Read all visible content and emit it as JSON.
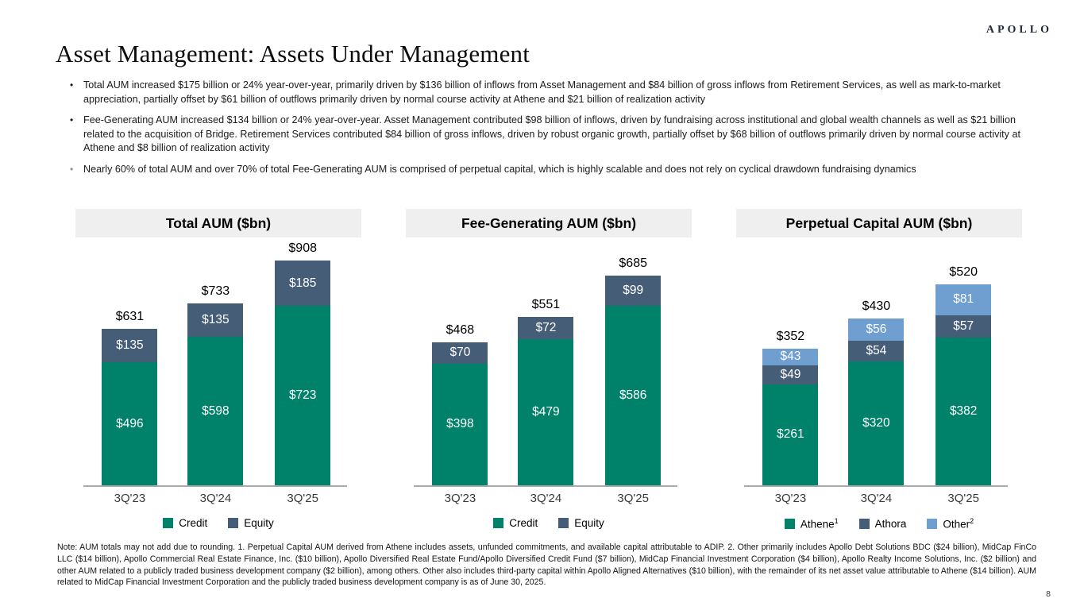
{
  "logo": "APOLLO",
  "title": "Asset Management: Assets Under Management",
  "bullets": [
    "Total AUM increased $175 billion or 24% year-over-year, primarily driven by $136 billion of inflows from Asset Management and $84 billion of gross inflows from Retirement Services, as well as mark-to-market appreciation, partially offset by $61 billion of outflows primarily driven by normal course activity at Athene and $21 billion of realization activity",
    "Fee-Generating AUM increased $134 billion or 24% year-over-year. Asset Management contributed $98 billion of inflows, driven by fundraising across institutional and global wealth channels as well as $21 billion related to the acquisition of Bridge. Retirement Services contributed $84 billion of gross inflows, driven by robust organic growth, partially offset by $68 billion of outflows primarily driven by normal course activity at Athene and $8 billion of realization activity",
    "Nearly 60% of total AUM and over 70% of total Fee-Generating AUM is comprised of perpetual capital, which is highly scalable and does not rely on cyclical drawdown fundraising dynamics"
  ],
  "chart_data": [
    {
      "type": "bar",
      "stacked": true,
      "title": "Total AUM ($bn)",
      "categories": [
        "3Q'23",
        "3Q'24",
        "3Q'25"
      ],
      "series": [
        {
          "name": "Credit",
          "sup": "",
          "color": "#00826A",
          "values": [
            496,
            598,
            723
          ]
        },
        {
          "name": "Equity",
          "sup": "",
          "color": "#465D77",
          "values": [
            135,
            135,
            185
          ]
        }
      ],
      "totals": [
        631,
        733,
        908
      ],
      "ylim": [
        0,
        1000
      ],
      "legend_position": "bottom",
      "grid": false
    },
    {
      "type": "bar",
      "stacked": true,
      "title": "Fee-Generating AUM ($bn)",
      "categories": [
        "3Q'23",
        "3Q'24",
        "3Q'25"
      ],
      "series": [
        {
          "name": "Credit",
          "sup": "",
          "color": "#00826A",
          "values": [
            398,
            479,
            586
          ]
        },
        {
          "name": "Equity",
          "sup": "",
          "color": "#465D77",
          "values": [
            70,
            72,
            99
          ]
        }
      ],
      "totals": [
        468,
        551,
        685
      ],
      "ylim": [
        0,
        810
      ],
      "legend_position": "bottom",
      "grid": false
    },
    {
      "type": "bar",
      "stacked": true,
      "title": "Perpetual Capital AUM ($bn)",
      "categories": [
        "3Q'23",
        "3Q'24",
        "3Q'25"
      ],
      "series": [
        {
          "name": "Athene",
          "sup": "1",
          "color": "#00826A",
          "values": [
            261,
            320,
            382
          ]
        },
        {
          "name": "Athora",
          "sup": "",
          "color": "#465D77",
          "values": [
            49,
            54,
            57
          ]
        },
        {
          "name": "Other",
          "sup": "2",
          "color": "#6F9FD0",
          "values": [
            43,
            56,
            81
          ]
        }
      ],
      "totals": [
        352,
        430,
        520
      ],
      "ylim": [
        0,
        640
      ],
      "legend_position": "bottom",
      "grid": false
    }
  ],
  "footnote": "Note: AUM totals may not add due to rounding. 1. Perpetual Capital AUM derived from Athene includes assets, unfunded commitments, and available capital attributable to ADIP. 2. Other primarily includes Apollo Debt Solutions BDC ($24 billion), MidCap FinCo LLC ($14 billion), Apollo Commercial Real Estate Finance, Inc. ($10 billion), Apollo Diversified Real Estate Fund/Apollo Diversified Credit Fund ($7 billion), MidCap Financial Investment Corporation ($4 billion), Apollo Realty Income Solutions, Inc. ($2 billion) and other AUM related to a publicly traded business development company ($2 billion), among others. Other also includes third-party capital within Apollo Aligned Alternatives ($10 billion), with the remainder of its net asset value attributable to Athene ($14 billion). AUM related to MidCap Financial Investment Corporation and the publicly traded business development company is as of June 30, 2025.",
  "page_number": "8"
}
